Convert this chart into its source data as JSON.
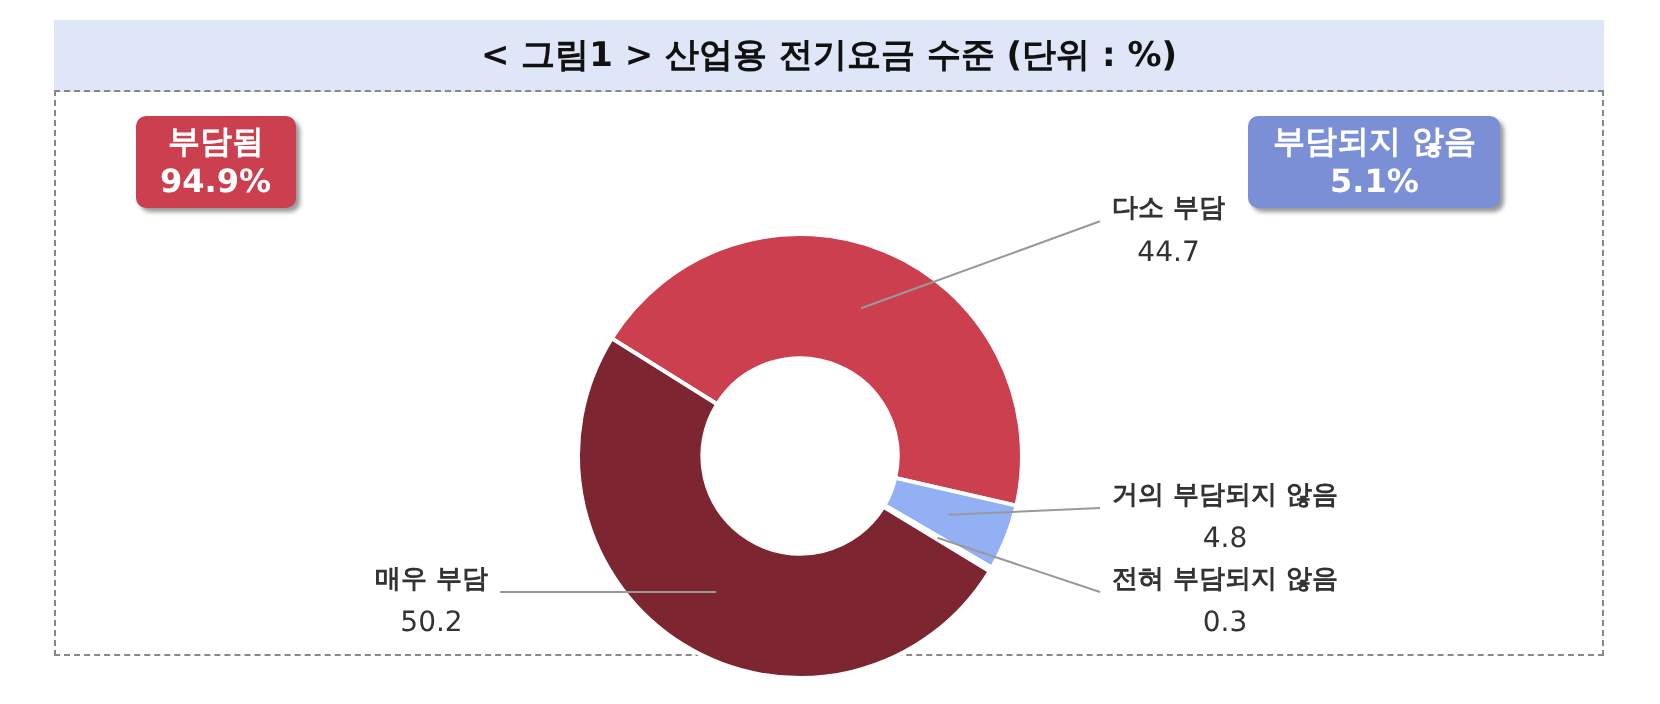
{
  "chart_data": {
    "type": "donut",
    "title": "< 그림1 > 산업용 전기요금 수준 (단위 : %)",
    "categories": [
      "다소 부담",
      "거의 부담되지 않음",
      "전혀 부담되지 않음",
      "매우 부담"
    ],
    "values": [
      44.7,
      4.8,
      0.3,
      50.2
    ],
    "colors": [
      "#cc3f4f",
      "#93b0f5",
      "#7a2a33",
      "#7d2530"
    ],
    "data_labels": true,
    "annotations": [
      "부담됨 94.9%",
      "부담되지 않음 5.1%"
    ]
  }
}
